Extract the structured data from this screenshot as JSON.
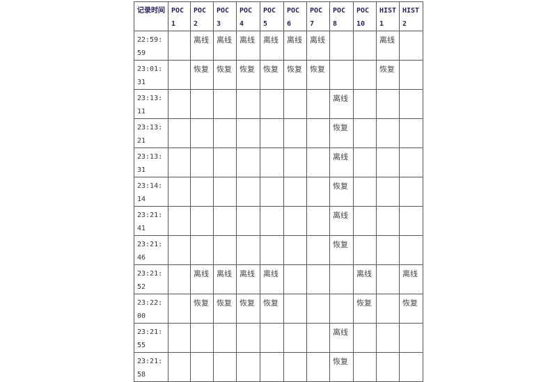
{
  "table": {
    "headers": [
      "记录时间",
      "POC 1",
      "POC 2",
      "POC 3",
      "POC 4",
      "POC 5",
      "POC 6",
      "POC 7",
      "POC 8",
      "POC 10",
      "HIST1",
      "HIST2"
    ],
    "rows": [
      [
        "22:59:59",
        "",
        "离线",
        "离线",
        "离线",
        "离线",
        "离线",
        "离线",
        "",
        "",
        "离线",
        ""
      ],
      [
        "23:01:31",
        "",
        "恢复",
        "恢复",
        "恢复",
        "恢复",
        "恢复",
        "恢复",
        "",
        "",
        "恢复",
        ""
      ],
      [
        "23:13:11",
        "",
        "",
        "",
        "",
        "",
        "",
        "",
        "离线",
        "",
        "",
        ""
      ],
      [
        "23:13:21",
        "",
        "",
        "",
        "",
        "",
        "",
        "",
        "恢复",
        "",
        "",
        ""
      ],
      [
        "23:13:31",
        "",
        "",
        "",
        "",
        "",
        "",
        "",
        "离线",
        "",
        "",
        ""
      ],
      [
        "23:14:14",
        "",
        "",
        "",
        "",
        "",
        "",
        "",
        "恢复",
        "",
        "",
        ""
      ],
      [
        "23:21:41",
        "",
        "",
        "",
        "",
        "",
        "",
        "",
        "离线",
        "",
        "",
        ""
      ],
      [
        "23:21:46",
        "",
        "",
        "",
        "",
        "",
        "",
        "",
        "恢复",
        "",
        "",
        ""
      ],
      [
        "23:21:52",
        "",
        "离线",
        "离线",
        "离线",
        "离线",
        "",
        "",
        "",
        "离线",
        "",
        "离线"
      ],
      [
        "23:22:00",
        "",
        "恢复",
        "恢复",
        "恢复",
        "恢复",
        "",
        "",
        "",
        "恢复",
        "",
        "恢复"
      ],
      [
        "23:21:55",
        "",
        "",
        "",
        "",
        "",
        "",
        "",
        "离线",
        "",
        "",
        ""
      ],
      [
        "23:21:58",
        "",
        "",
        "",
        "",
        "",
        "",
        "",
        "恢复",
        "",
        "",
        ""
      ]
    ]
  }
}
